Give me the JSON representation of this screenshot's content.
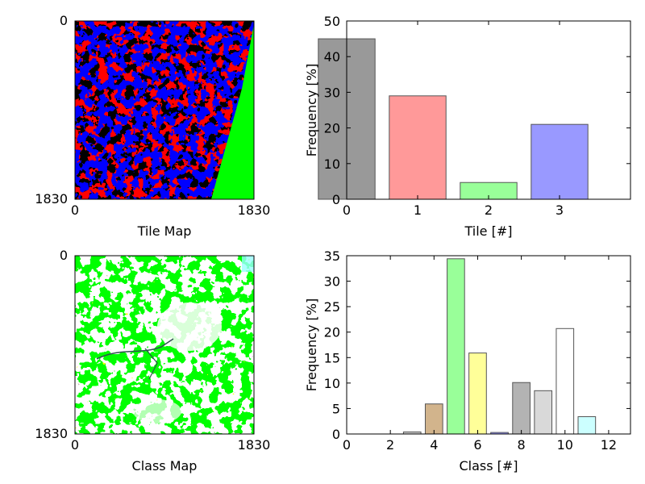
{
  "chart_data": [
    {
      "type": "heatmap",
      "name": "tile-map",
      "description_colors": [
        "#000000",
        "#ff0000",
        "#0000ff",
        "#00ff00"
      ],
      "xlabel": "Tile Map",
      "xticks": [
        "0",
        "1830"
      ],
      "yticks": [
        "0",
        "1830"
      ]
    },
    {
      "type": "bar",
      "name": "tile-histogram",
      "categories": [
        0,
        1,
        2,
        3
      ],
      "values": [
        45,
        29,
        4.7,
        21
      ],
      "colors": [
        "#999999",
        "#ff9999",
        "#99ff99",
        "#9999ff"
      ],
      "xlabel": "Tile [#]",
      "ylabel": "Frequency [%]",
      "xlim": [
        0,
        4
      ],
      "ylim": [
        0,
        50
      ],
      "xticks": [
        0,
        1,
        2,
        3
      ],
      "yticks": [
        0,
        10,
        20,
        30,
        40,
        50
      ]
    },
    {
      "type": "heatmap",
      "name": "class-map",
      "description_colors": [
        "#ffffff",
        "#00ff00",
        "#ffff00",
        "#999999",
        "#8b7355",
        "#99ffff",
        "#2f4f4f"
      ],
      "xlabel": "Class Map",
      "xticks": [
        "0",
        "1830"
      ],
      "yticks": [
        "0",
        "1830"
      ]
    },
    {
      "type": "bar",
      "name": "class-histogram",
      "categories": [
        3,
        4,
        5,
        6,
        7,
        8,
        9,
        10,
        11
      ],
      "values": [
        0.4,
        5.9,
        34.4,
        15.9,
        0.3,
        10.1,
        8.5,
        20.7,
        3.4
      ],
      "colors": [
        "#cccccc",
        "#d2b48c",
        "#99ff99",
        "#ffff99",
        "#9999ff",
        "#b3b3b3",
        "#d9d9d9",
        "#ffffff",
        "#ccffff"
      ],
      "xlabel": "Class [#]",
      "ylabel": "Frequency [%]",
      "xlim": [
        0,
        13
      ],
      "ylim": [
        0,
        35
      ],
      "xticks": [
        0,
        2,
        4,
        6,
        8,
        10,
        12
      ],
      "yticks": [
        0,
        5,
        10,
        15,
        20,
        25,
        30,
        35
      ]
    }
  ]
}
